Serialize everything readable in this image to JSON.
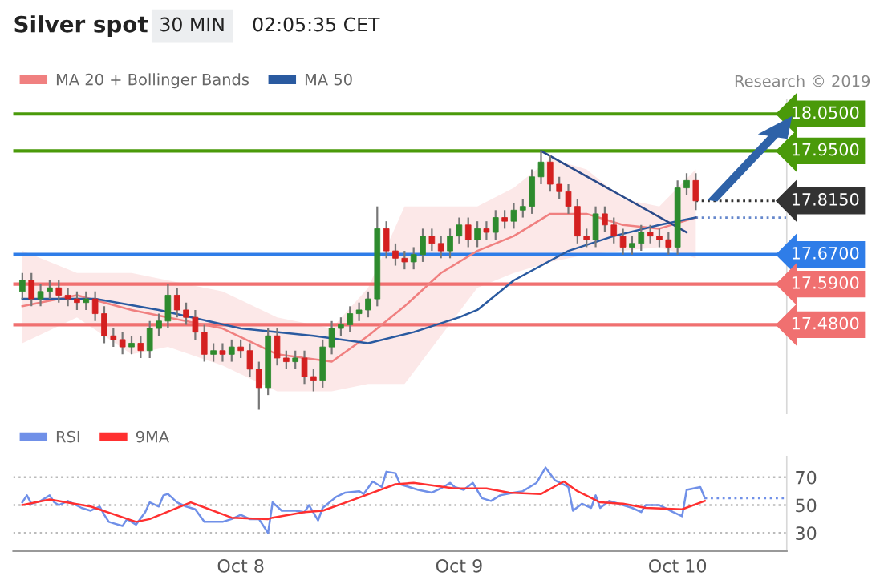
{
  "chart_data": [
    {
      "type": "candlestick",
      "title": "Silver spot",
      "subtitle": "30 MIN",
      "annotations": [
        "02:05:35 CET",
        "Research © 2019"
      ],
      "legend": "top left",
      "tick_labels": false,
      "xlim": [
        "2019-10-06T23:00",
        "2019-10-10T12:00"
      ],
      "ylim": [
        17.24,
        18.09
      ],
      "x": [
        "2019-10-07T00:00",
        "2019-10-07T01:00",
        "2019-10-07T02:00",
        "2019-10-07T03:00",
        "2019-10-07T04:00",
        "2019-10-07T05:00",
        "2019-10-07T06:00",
        "2019-10-07T07:00",
        "2019-10-07T08:00",
        "2019-10-07T09:00",
        "2019-10-07T10:00",
        "2019-10-07T11:00",
        "2019-10-07T12:00",
        "2019-10-07T13:00",
        "2019-10-07T14:00",
        "2019-10-07T15:00",
        "2019-10-07T16:00",
        "2019-10-07T17:00",
        "2019-10-07T18:00",
        "2019-10-07T19:00",
        "2019-10-07T20:00",
        "2019-10-07T21:00",
        "2019-10-07T22:00",
        "2019-10-07T23:00",
        "2019-10-08T00:00",
        "2019-10-08T01:00",
        "2019-10-08T02:00",
        "2019-10-08T03:00",
        "2019-10-08T04:00",
        "2019-10-08T05:00",
        "2019-10-08T06:00",
        "2019-10-08T07:00",
        "2019-10-08T08:00",
        "2019-10-08T09:00",
        "2019-10-08T10:00",
        "2019-10-08T11:00",
        "2019-10-08T12:00",
        "2019-10-08T13:00",
        "2019-10-08T14:00",
        "2019-10-08T15:00",
        "2019-10-08T16:00",
        "2019-10-08T17:00",
        "2019-10-08T18:00",
        "2019-10-08T19:00",
        "2019-10-08T20:00",
        "2019-10-08T21:00",
        "2019-10-08T22:00",
        "2019-10-08T23:00",
        "2019-10-09T00:00",
        "2019-10-09T01:00",
        "2019-10-09T02:00",
        "2019-10-09T03:00",
        "2019-10-09T04:00",
        "2019-10-09T05:00",
        "2019-10-09T06:00",
        "2019-10-09T07:00",
        "2019-10-09T08:00",
        "2019-10-09T09:00",
        "2019-10-09T10:00",
        "2019-10-09T11:00",
        "2019-10-09T12:00",
        "2019-10-09T13:00",
        "2019-10-09T14:00",
        "2019-10-09T15:00",
        "2019-10-09T16:00",
        "2019-10-09T17:00",
        "2019-10-09T18:00",
        "2019-10-09T19:00",
        "2019-10-09T20:00",
        "2019-10-09T21:00",
        "2019-10-09T22:00",
        "2019-10-09T23:00",
        "2019-10-10T00:00",
        "2019-10-10T01:00",
        "2019-10-10T02:00"
      ],
      "ohlc": [
        [
          17.57,
          17.62,
          17.55,
          17.6
        ],
        [
          17.6,
          17.62,
          17.53,
          17.55
        ],
        [
          17.55,
          17.59,
          17.53,
          17.57
        ],
        [
          17.57,
          17.6,
          17.55,
          17.58
        ],
        [
          17.58,
          17.6,
          17.54,
          17.56
        ],
        [
          17.56,
          17.58,
          17.53,
          17.55
        ],
        [
          17.55,
          17.57,
          17.52,
          17.54
        ],
        [
          17.54,
          17.57,
          17.52,
          17.55
        ],
        [
          17.55,
          17.57,
          17.49,
          17.51
        ],
        [
          17.51,
          17.53,
          17.43,
          17.45
        ],
        [
          17.45,
          17.47,
          17.42,
          17.44
        ],
        [
          17.44,
          17.46,
          17.4,
          17.42
        ],
        [
          17.42,
          17.45,
          17.4,
          17.43
        ],
        [
          17.43,
          17.45,
          17.39,
          17.41
        ],
        [
          17.41,
          17.49,
          17.39,
          17.47
        ],
        [
          17.47,
          17.51,
          17.45,
          17.49
        ],
        [
          17.49,
          17.59,
          17.47,
          17.56
        ],
        [
          17.56,
          17.58,
          17.5,
          17.52
        ],
        [
          17.52,
          17.54,
          17.48,
          17.5
        ],
        [
          17.5,
          17.52,
          17.44,
          17.46
        ],
        [
          17.46,
          17.48,
          17.38,
          17.4
        ],
        [
          17.4,
          17.43,
          17.38,
          17.41
        ],
        [
          17.41,
          17.43,
          17.38,
          17.4
        ],
        [
          17.4,
          17.44,
          17.38,
          17.42
        ],
        [
          17.42,
          17.44,
          17.39,
          17.41
        ],
        [
          17.41,
          17.43,
          17.34,
          17.36
        ],
        [
          17.36,
          17.38,
          17.25,
          17.31
        ],
        [
          17.31,
          17.47,
          17.29,
          17.45
        ],
        [
          17.45,
          17.47,
          17.37,
          17.39
        ],
        [
          17.39,
          17.41,
          17.36,
          17.38
        ],
        [
          17.38,
          17.41,
          17.36,
          17.39
        ],
        [
          17.39,
          17.41,
          17.32,
          17.34
        ],
        [
          17.34,
          17.36,
          17.3,
          17.33
        ],
        [
          17.33,
          17.44,
          17.31,
          17.42
        ],
        [
          17.42,
          17.49,
          17.4,
          17.47
        ],
        [
          17.47,
          17.5,
          17.45,
          17.48
        ],
        [
          17.48,
          17.53,
          17.46,
          17.51
        ],
        [
          17.51,
          17.54,
          17.49,
          17.52
        ],
        [
          17.52,
          17.57,
          17.5,
          17.55
        ],
        [
          17.55,
          17.8,
          17.53,
          17.74
        ],
        [
          17.74,
          17.76,
          17.66,
          17.68
        ],
        [
          17.68,
          17.7,
          17.64,
          17.66
        ],
        [
          17.66,
          17.68,
          17.63,
          17.65
        ],
        [
          17.65,
          17.69,
          17.63,
          17.67
        ],
        [
          17.67,
          17.74,
          17.65,
          17.72
        ],
        [
          17.72,
          17.74,
          17.68,
          17.7
        ],
        [
          17.7,
          17.72,
          17.66,
          17.68
        ],
        [
          17.68,
          17.74,
          17.66,
          17.72
        ],
        [
          17.72,
          17.77,
          17.7,
          17.75
        ],
        [
          17.75,
          17.77,
          17.69,
          17.71
        ],
        [
          17.71,
          17.76,
          17.69,
          17.74
        ],
        [
          17.74,
          17.76,
          17.71,
          17.73
        ],
        [
          17.73,
          17.79,
          17.71,
          17.77
        ],
        [
          17.77,
          17.79,
          17.74,
          17.76
        ],
        [
          17.76,
          17.81,
          17.74,
          17.79
        ],
        [
          17.79,
          17.82,
          17.77,
          17.8
        ],
        [
          17.8,
          17.9,
          17.78,
          17.88
        ],
        [
          17.88,
          17.95,
          17.86,
          17.92
        ],
        [
          17.92,
          17.94,
          17.84,
          17.86
        ],
        [
          17.86,
          17.88,
          17.82,
          17.84
        ],
        [
          17.84,
          17.86,
          17.78,
          17.8
        ],
        [
          17.8,
          17.82,
          17.7,
          17.72
        ],
        [
          17.72,
          17.74,
          17.69,
          17.71
        ],
        [
          17.71,
          17.8,
          17.69,
          17.78
        ],
        [
          17.78,
          17.8,
          17.73,
          17.75
        ],
        [
          17.75,
          17.77,
          17.7,
          17.72
        ],
        [
          17.72,
          17.74,
          17.67,
          17.69
        ],
        [
          17.69,
          17.72,
          17.67,
          17.7
        ],
        [
          17.7,
          17.75,
          17.68,
          17.73
        ],
        [
          17.73,
          17.75,
          17.7,
          17.72
        ],
        [
          17.72,
          17.74,
          17.69,
          17.71
        ],
        [
          17.71,
          17.73,
          17.67,
          17.69
        ],
        [
          17.69,
          17.87,
          17.67,
          17.85
        ],
        [
          17.85,
          17.89,
          17.83,
          17.87
        ],
        [
          17.87,
          17.89,
          17.79,
          17.815
        ]
      ],
      "series": [
        {
          "name": "MA 20 + Bollinger Bands",
          "type": "line",
          "color": "#f08080",
          "x": [
            "2019-10-07T00:00",
            "2019-10-07T06:00",
            "2019-10-07T12:00",
            "2019-10-07T16:00",
            "2019-10-07T22:00",
            "2019-10-08T04:00",
            "2019-10-08T10:00",
            "2019-10-08T14:00",
            "2019-10-08T18:00",
            "2019-10-08T22:00",
            "2019-10-09T02:00",
            "2019-10-09T06:00",
            "2019-10-09T10:00",
            "2019-10-09T14:00",
            "2019-10-09T18:00",
            "2019-10-09T22:00",
            "2019-10-10T02:00"
          ],
          "values": [
            17.53,
            17.56,
            17.52,
            17.5,
            17.47,
            17.4,
            17.38,
            17.45,
            17.53,
            17.62,
            17.68,
            17.72,
            17.78,
            17.78,
            17.75,
            17.74,
            17.77
          ],
          "lower": [
            17.43,
            17.5,
            17.4,
            17.42,
            17.37,
            17.3,
            17.3,
            17.32,
            17.32,
            17.45,
            17.58,
            17.62,
            17.65,
            17.67,
            17.68,
            17.69,
            17.66
          ],
          "upper": [
            17.68,
            17.62,
            17.62,
            17.6,
            17.57,
            17.5,
            17.47,
            17.58,
            17.8,
            17.8,
            17.8,
            17.85,
            17.93,
            17.9,
            17.82,
            17.8,
            17.9
          ]
        },
        {
          "name": "MA 50",
          "type": "line",
          "color": "#2a5aa0",
          "x": [
            "2019-10-07T00:00",
            "2019-10-07T08:00",
            "2019-10-07T15:00",
            "2019-10-08T00:00",
            "2019-10-08T08:00",
            "2019-10-08T14:00",
            "2019-10-08T19:00",
            "2019-10-09T00:00",
            "2019-10-09T02:00",
            "2019-10-09T06:00",
            "2019-10-09T12:00",
            "2019-10-09T17:00",
            "2019-10-09T22:00",
            "2019-10-10T02:00"
          ],
          "values": [
            17.55,
            17.55,
            17.52,
            17.47,
            17.45,
            17.43,
            17.46,
            17.5,
            17.52,
            17.6,
            17.68,
            17.72,
            17.75,
            17.77
          ]
        },
        {
          "type": "line",
          "color": "#2a4a8a",
          "x": [
            "2019-10-09T09:00",
            "2019-10-10T01:00"
          ],
          "values": [
            17.95,
            17.73
          ]
        }
      ],
      "ref_lines": [
        {
          "axis": "y",
          "value": 18.05,
          "label": "18.0500",
          "color": "#4a9a0a",
          "line_style": "solid"
        },
        {
          "axis": "y",
          "value": 17.95,
          "label": "17.9500",
          "color": "#4a9a0a",
          "line_style": "solid"
        },
        {
          "axis": "y",
          "value": 17.815,
          "label": "17.8150",
          "color": "#333333",
          "line_style": "dotted"
        },
        {
          "axis": "y",
          "value": 17.77,
          "color": "#6688cc",
          "line_style": "dotted"
        },
        {
          "axis": "y",
          "value": 17.67,
          "label": "17.6700",
          "color": "#2f7de8",
          "line_style": "solid"
        },
        {
          "axis": "y",
          "value": 17.59,
          "label": "17.5900",
          "color": "#f07070",
          "line_style": "solid"
        },
        {
          "axis": "y",
          "value": 17.48,
          "label": "17.4800",
          "color": "#f07070",
          "line_style": "solid"
        }
      ]
    },
    {
      "type": "line",
      "legend": "top left",
      "grid": "y",
      "ylim": [
        17,
        85
      ],
      "yticks": [
        30,
        50,
        70
      ],
      "xlim": [
        "2019-10-06T23:00",
        "2019-10-10T12:00"
      ],
      "xticks": [
        {
          "value": "2019-10-08",
          "label": "Oct 8"
        },
        {
          "value": "2019-10-09",
          "label": "Oct 9"
        },
        {
          "value": "2019-10-10",
          "label": "Oct 10"
        }
      ],
      "series": [
        {
          "name": "RSI",
          "color": "#7090e8",
          "x": [
            "2019-10-07T00:00",
            "2019-10-07T00:30",
            "2019-10-07T01:00",
            "2019-10-07T02:00",
            "2019-10-07T03:00",
            "2019-10-07T03:30",
            "2019-10-07T04:00",
            "2019-10-07T05:00",
            "2019-10-07T06:30",
            "2019-10-07T07:30",
            "2019-10-07T08:30",
            "2019-10-07T09:00",
            "2019-10-07T09:30",
            "2019-10-07T10:00",
            "2019-10-07T11:00",
            "2019-10-07T11:30",
            "2019-10-07T12:30",
            "2019-10-07T13:30",
            "2019-10-07T14:00",
            "2019-10-07T15:00",
            "2019-10-07T15:30",
            "2019-10-07T16:00",
            "2019-10-07T17:00",
            "2019-10-07T18:00",
            "2019-10-07T19:00",
            "2019-10-07T20:00",
            "2019-10-07T21:00",
            "2019-10-07T22:00",
            "2019-10-07T23:00",
            "2019-10-08T00:00",
            "2019-10-08T01:00",
            "2019-10-08T02:00",
            "2019-10-08T03:00",
            "2019-10-08T03:30",
            "2019-10-08T04:30",
            "2019-10-08T06:00",
            "2019-10-08T07:00",
            "2019-10-08T07:30",
            "2019-10-08T08:30",
            "2019-10-08T09:00",
            "2019-10-08T10:30",
            "2019-10-08T11:30",
            "2019-10-08T13:00",
            "2019-10-08T13:30",
            "2019-10-08T14:30",
            "2019-10-08T15:30",
            "2019-10-08T16:00",
            "2019-10-08T17:00",
            "2019-10-08T17:30",
            "2019-10-08T18:30",
            "2019-10-08T19:30",
            "2019-10-08T21:00",
            "2019-10-08T22:00",
            "2019-10-08T23:00",
            "2019-10-08T23:30",
            "2019-10-09T00:30",
            "2019-10-09T01:30",
            "2019-10-09T02:30",
            "2019-10-09T03:30",
            "2019-10-09T04:30",
            "2019-10-09T06:00",
            "2019-10-09T07:00",
            "2019-10-09T08:30",
            "2019-10-09T09:30",
            "2019-10-09T10:30",
            "2019-10-09T12:00",
            "2019-10-09T12:30",
            "2019-10-09T13:30",
            "2019-10-09T14:30",
            "2019-10-09T15:00",
            "2019-10-09T15:30",
            "2019-10-09T16:30",
            "2019-10-09T17:30",
            "2019-10-09T19:00",
            "2019-10-09T20:00",
            "2019-10-09T20:30",
            "2019-10-09T22:00",
            "2019-10-09T23:30",
            "2019-10-10T00:30",
            "2019-10-10T01:00",
            "2019-10-10T02:30",
            "2019-10-10T03:00"
          ],
          "values": [
            52,
            57,
            51,
            53,
            57,
            52,
            50,
            53,
            48,
            46,
            49,
            43,
            38,
            37,
            35,
            40,
            36,
            45,
            52,
            49,
            57,
            58,
            52,
            49,
            47,
            38,
            38,
            38,
            40,
            43,
            40,
            40,
            30,
            52,
            46,
            46,
            45,
            50,
            39,
            48,
            56,
            59,
            60,
            58,
            67,
            63,
            74,
            73,
            65,
            63,
            61,
            59,
            62,
            66,
            63,
            61,
            66,
            55,
            53,
            57,
            59,
            60,
            66,
            77,
            68,
            63,
            46,
            51,
            48,
            57,
            48,
            53,
            51,
            48,
            45,
            50,
            50,
            45,
            42,
            61,
            63,
            55
          ]
        },
        {
          "name": "9MA",
          "color": "#ff3030",
          "x": [
            "2019-10-07T00:00",
            "2019-10-07T03:00",
            "2019-10-07T07:30",
            "2019-10-07T12:30",
            "2019-10-07T14:00",
            "2019-10-07T18:30",
            "2019-10-07T23:00",
            "2019-10-08T03:00",
            "2019-10-08T03:30",
            "2019-10-08T07:00",
            "2019-10-08T09:00",
            "2019-10-08T12:00",
            "2019-10-08T17:00",
            "2019-10-08T19:00",
            "2019-10-08T23:30",
            "2019-10-09T03:00",
            "2019-10-09T05:30",
            "2019-10-09T09:00",
            "2019-10-09T11:30",
            "2019-10-09T13:00",
            "2019-10-09T15:30",
            "2019-10-09T18:00",
            "2019-10-09T20:30",
            "2019-10-10T00:30",
            "2019-10-10T03:00"
          ],
          "values": [
            50,
            54,
            49,
            38,
            40,
            52,
            41,
            40,
            41,
            45,
            46,
            53,
            65,
            66,
            62,
            62,
            59,
            58,
            67,
            60,
            52,
            51,
            48,
            47,
            53
          ]
        }
      ],
      "ref_lines": [
        {
          "axis": "y",
          "value": 55,
          "color": "#7090e8",
          "line_style": "dotted"
        }
      ]
    }
  ]
}
